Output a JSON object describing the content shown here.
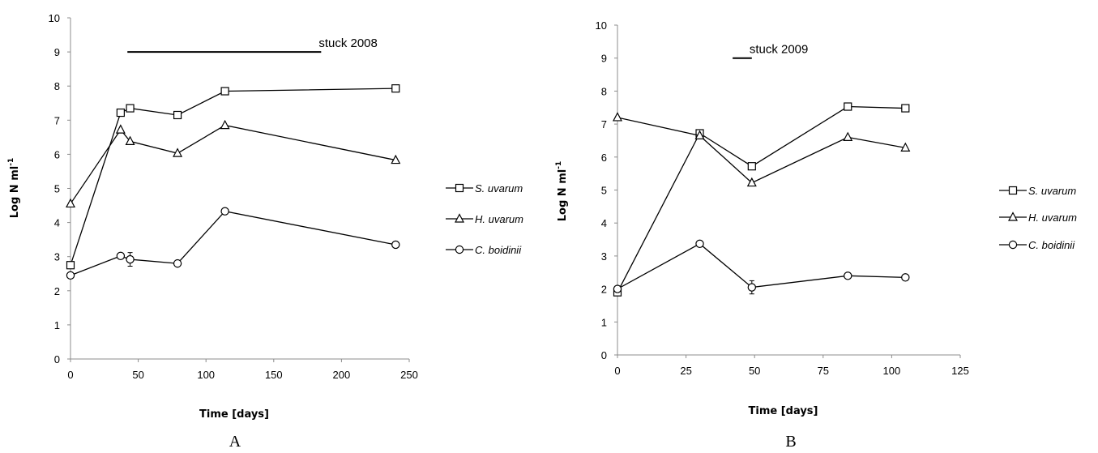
{
  "chart_data": [
    {
      "panel": "A",
      "type": "line",
      "xlabel": "Time [days]",
      "ylabel": "Log N ml",
      "ylabel_superscript": "-1",
      "xlim": [
        0,
        250
      ],
      "ylim": [
        0,
        10
      ],
      "xticks": [
        0,
        50,
        100,
        150,
        200,
        250
      ],
      "yticks": [
        0,
        1,
        2,
        3,
        4,
        5,
        6,
        7,
        8,
        9,
        10
      ],
      "grid": false,
      "legend_position": "right",
      "annotation": {
        "text": "stuck 2008",
        "x_start": 42,
        "x_end": 185,
        "y": 9
      },
      "series": [
        {
          "name": "S. uvarum",
          "marker": "square",
          "x": [
            0,
            37,
            44,
            79,
            114,
            240
          ],
          "y": [
            2.75,
            7.22,
            7.35,
            7.15,
            7.85,
            7.93
          ],
          "err": [
            0,
            0,
            0,
            0,
            0,
            0
          ]
        },
        {
          "name": "H. uvarum",
          "marker": "triangle",
          "x": [
            0,
            37,
            44,
            79,
            114,
            240
          ],
          "y": [
            4.55,
            6.72,
            6.38,
            6.03,
            6.85,
            5.83
          ],
          "err": [
            0,
            0,
            0,
            0,
            0,
            0
          ]
        },
        {
          "name": "C. boidinii",
          "marker": "circle",
          "x": [
            0,
            37,
            44,
            79,
            114,
            240
          ],
          "y": [
            2.45,
            3.02,
            2.92,
            2.8,
            4.33,
            3.35
          ],
          "err": [
            0,
            0,
            0.2,
            0,
            0,
            0
          ]
        }
      ]
    },
    {
      "panel": "B",
      "type": "line",
      "xlabel": "Time [days]",
      "ylabel": "Log N ml",
      "ylabel_superscript": "-1",
      "xlim": [
        0,
        125
      ],
      "ylim": [
        0,
        10
      ],
      "xticks": [
        0,
        25,
        50,
        75,
        100,
        125
      ],
      "yticks": [
        0,
        1,
        2,
        3,
        4,
        5,
        6,
        7,
        8,
        9,
        10
      ],
      "grid": false,
      "legend_position": "right",
      "annotation": {
        "text": "stuck 2009",
        "x_start": 42,
        "x_end": 49,
        "y": 9
      },
      "series": [
        {
          "name": "S. uvarum",
          "marker": "square",
          "x": [
            0,
            30,
            49,
            84,
            105
          ],
          "y": [
            1.9,
            6.72,
            5.72,
            7.53,
            7.48
          ],
          "err": [
            0,
            0,
            0,
            0,
            0
          ]
        },
        {
          "name": "H. uvarum",
          "marker": "triangle",
          "x": [
            0,
            30,
            49,
            84,
            105
          ],
          "y": [
            7.2,
            6.65,
            5.22,
            6.6,
            6.28
          ],
          "err": [
            0,
            0,
            0,
            0,
            0
          ]
        },
        {
          "name": "C. boidinii",
          "marker": "circle",
          "x": [
            0,
            30,
            49,
            84,
            105
          ],
          "y": [
            2.0,
            3.37,
            2.05,
            2.4,
            2.35
          ],
          "err": [
            0,
            0,
            0.2,
            0,
            0
          ]
        }
      ]
    }
  ]
}
